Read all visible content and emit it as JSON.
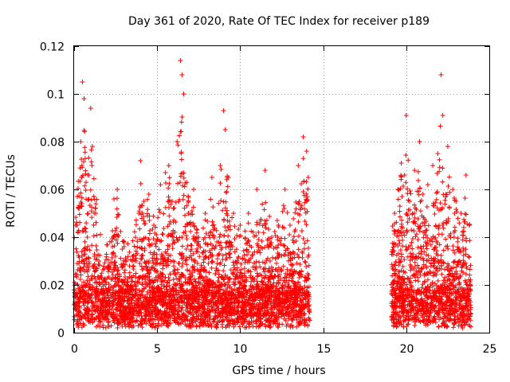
{
  "chart_data": {
    "type": "scatter",
    "title": "Day 361 of 2020, Rate Of TEC Index for receiver p189",
    "xlabel": "GPS time / hours",
    "ylabel": "ROTI / TECUs",
    "xlim": [
      0,
      25
    ],
    "ylim": [
      0,
      0.12
    ],
    "x_ticks": [
      0,
      5,
      10,
      15,
      20,
      25
    ],
    "x_tick_labels": [
      "0",
      "5",
      "10",
      "15",
      "20",
      "25"
    ],
    "y_ticks": [
      0,
      0.02,
      0.04,
      0.06,
      0.08,
      0.1,
      0.12
    ],
    "y_tick_labels": [
      "0",
      "0.02",
      "0.04",
      "0.06",
      "0.08",
      "0.1",
      "0.12"
    ],
    "grid": true,
    "legend": "none",
    "marker": "+",
    "series_color": "#ff0000",
    "coverage_hours": [
      [
        0,
        14.2
      ],
      [
        19.1,
        23.9
      ]
    ],
    "series": [
      {
        "x": [
          0.1,
          0.3,
          0.4,
          0.5,
          0.6,
          0.8,
          0.9,
          1.0,
          1.1,
          1.3,
          1.5,
          1.8,
          2.1,
          2.4,
          2.6,
          2.9,
          3.2,
          3.5,
          3.9,
          4.0,
          4.2,
          4.5,
          4.8,
          5.2,
          5.5,
          5.7,
          5.9,
          6.2,
          6.4,
          6.5,
          6.6,
          6.9,
          7.2,
          7.5,
          7.9,
          8.3,
          8.8,
          9.0,
          9.1,
          9.3,
          9.6,
          10.0,
          10.5,
          11.0,
          11.5,
          11.9,
          12.3,
          12.7,
          13.0,
          13.5,
          13.8,
          14.0,
          14.1,
          19.3,
          19.5,
          19.7,
          19.9,
          20.0,
          20.2,
          20.5,
          20.8,
          21.0,
          21.3,
          21.6,
          21.9,
          22.1,
          22.2,
          22.5,
          22.8,
          23.0,
          23.3,
          23.6,
          23.8
        ],
        "y": [
          0.015,
          0.052,
          0.08,
          0.105,
          0.098,
          0.04,
          0.066,
          0.094,
          0.078,
          0.05,
          0.03,
          0.022,
          0.018,
          0.056,
          0.06,
          0.035,
          0.02,
          0.03,
          0.05,
          0.072,
          0.055,
          0.058,
          0.045,
          0.062,
          0.067,
          0.07,
          0.055,
          0.08,
          0.114,
          0.108,
          0.1,
          0.05,
          0.06,
          0.04,
          0.05,
          0.065,
          0.07,
          0.093,
          0.085,
          0.065,
          0.05,
          0.045,
          0.05,
          0.06,
          0.068,
          0.04,
          0.045,
          0.06,
          0.045,
          0.07,
          0.082,
          0.076,
          0.065,
          0.05,
          0.06,
          0.071,
          0.066,
          0.091,
          0.055,
          0.068,
          0.08,
          0.058,
          0.062,
          0.07,
          0.075,
          0.108,
          0.091,
          0.078,
          0.06,
          0.055,
          0.05,
          0.066,
          0.045
        ]
      }
    ]
  }
}
